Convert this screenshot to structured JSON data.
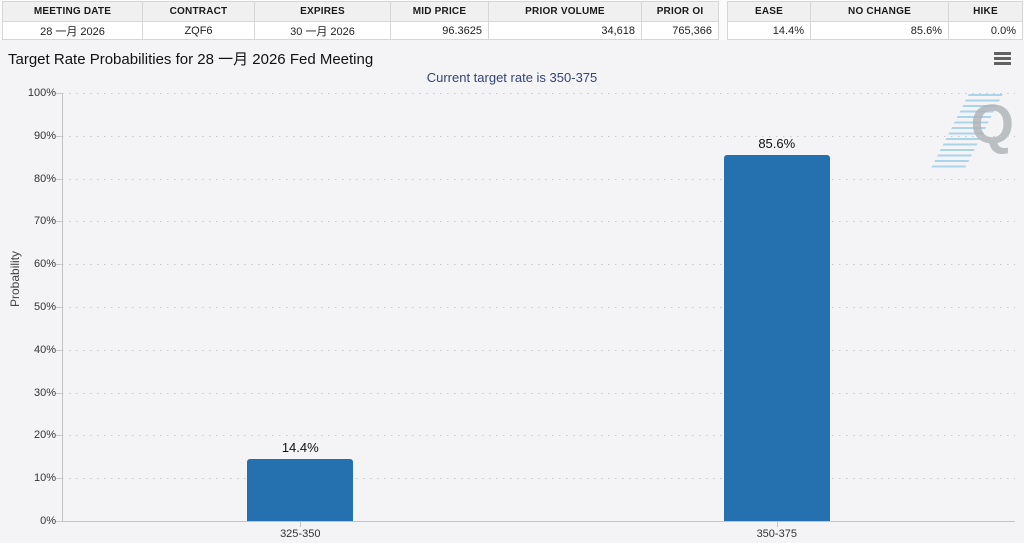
{
  "summary_table": {
    "headers": [
      "MEETING DATE",
      "CONTRACT",
      "EXPIRES",
      "MID PRICE",
      "PRIOR VOLUME",
      "PRIOR OI"
    ],
    "values": [
      "28 一月 2026",
      "ZQF6",
      "30 一月 2026",
      "96.3625",
      "34,618",
      "765,366"
    ]
  },
  "rate_table": {
    "headers": [
      "EASE",
      "NO CHANGE",
      "HIKE"
    ],
    "values": [
      "14.4%",
      "85.6%",
      "0.0%"
    ]
  },
  "chart_data": {
    "type": "bar",
    "title": "Target Rate Probabilities for 28 一月 2026 Fed Meeting",
    "subtitle": "Current target rate is 350-375",
    "categories": [
      "325-350",
      "350-375"
    ],
    "values": [
      14.4,
      85.6
    ],
    "value_labels": [
      "14.4%",
      "85.6%"
    ],
    "xlabel": "",
    "ylabel": "Probability",
    "ylim": [
      0,
      100
    ],
    "ytick_step": 10,
    "ytick_suffix": "%",
    "grid": "dotted horizontal",
    "legend": "none",
    "bar_color": "#2571af",
    "label_color": "#111111",
    "watermark_letter": "Q"
  }
}
